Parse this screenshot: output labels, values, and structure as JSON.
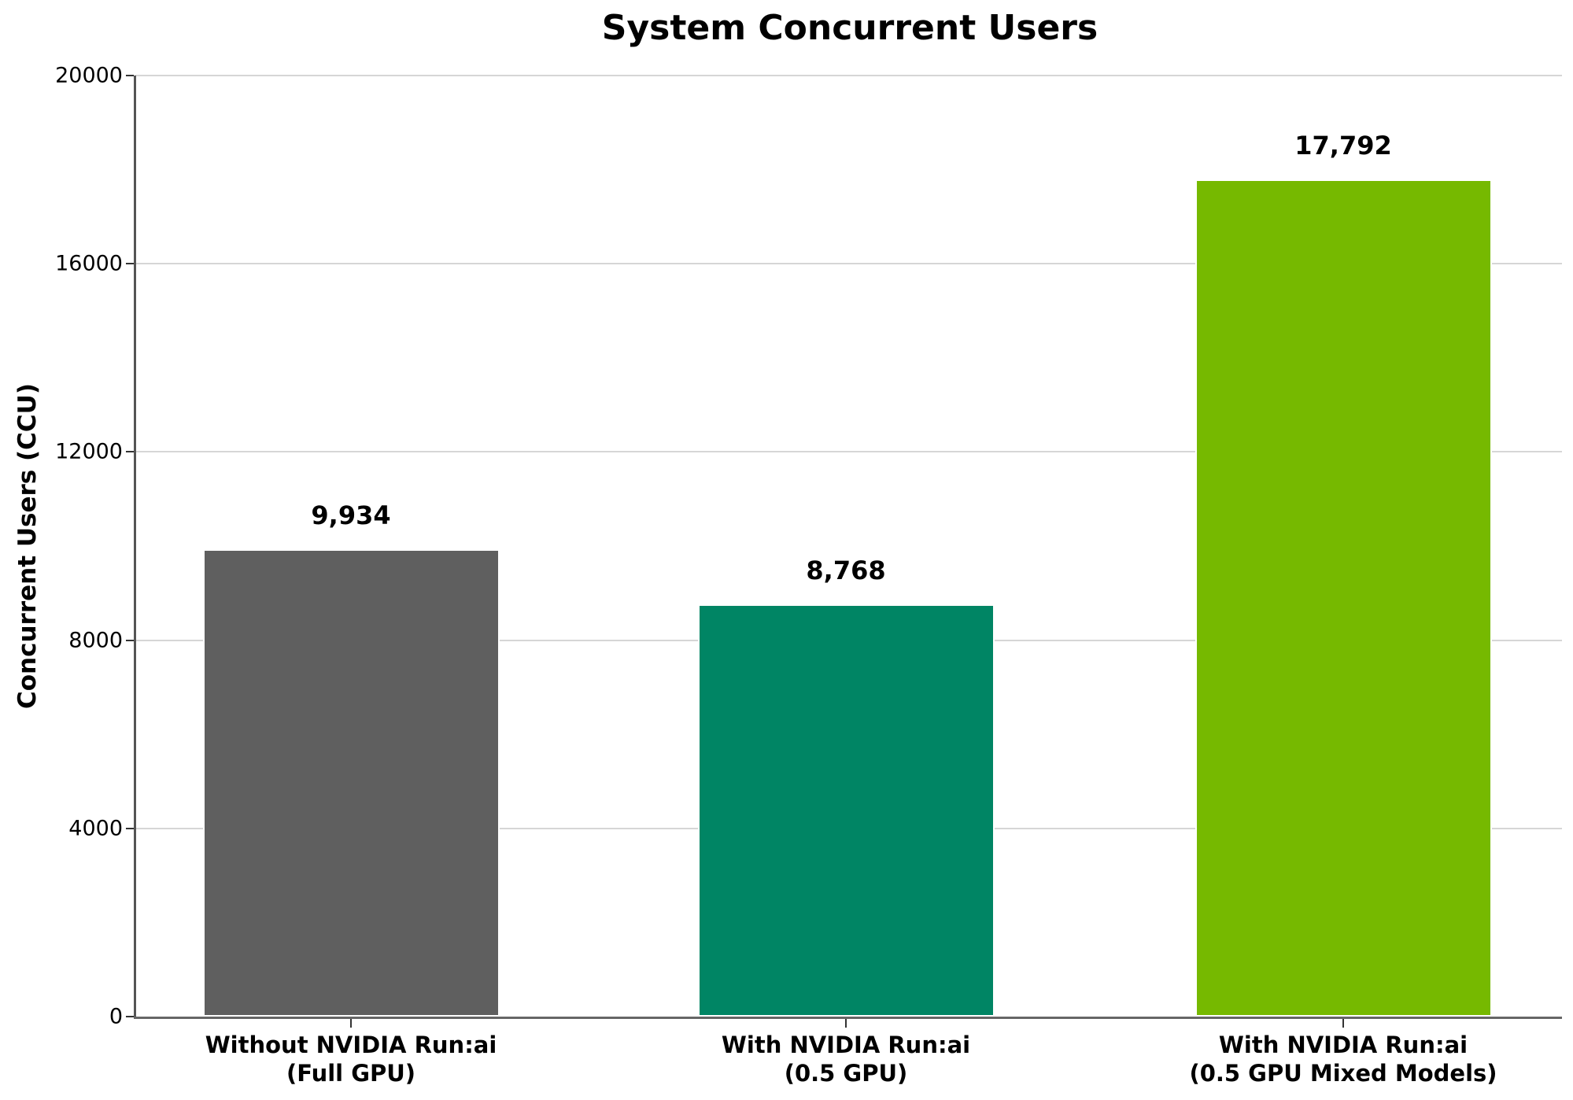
{
  "chart_data": {
    "type": "bar",
    "title": "System Concurrent Users",
    "xlabel": "",
    "ylabel": "Concurrent Users (CCU)",
    "ylim": [
      0,
      20000
    ],
    "yticks": [
      0,
      4000,
      8000,
      12000,
      16000,
      20000
    ],
    "grid": true,
    "legend": null,
    "categories": [
      "Without NVIDIA Run:ai (Full GPU)",
      "With NVIDIA Run:ai (0.5 GPU)",
      "With NVIDIA Run:ai (0.5 GPU Mixed Models)"
    ],
    "category_lines": [
      [
        "Without NVIDIA Run:ai",
        "(Full GPU)"
      ],
      [
        "With NVIDIA Run:ai",
        "(0.5 GPU)"
      ],
      [
        "With NVIDIA Run:ai",
        "(0.5 GPU Mixed Models)"
      ]
    ],
    "values": [
      9934,
      8768,
      17792
    ],
    "value_labels": [
      "9,934",
      "8,768",
      "17,792"
    ],
    "colors": [
      "#5f5f5f",
      "#008564",
      "#76b900"
    ]
  }
}
